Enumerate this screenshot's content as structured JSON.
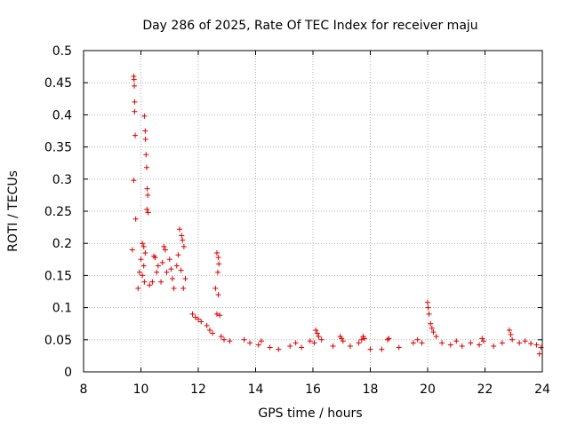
{
  "chart_data": {
    "type": "scatter",
    "title": "Day 286 of 2025, Rate Of TEC Index for receiver maju",
    "xlabel": "GPS time / hours",
    "ylabel": "ROTI / TECUs",
    "xlim": [
      8,
      24
    ],
    "ylim": [
      0,
      0.5
    ],
    "xticks": [
      8,
      10,
      12,
      14,
      16,
      18,
      20,
      22,
      24
    ],
    "yticks": [
      0,
      0.05,
      0.1,
      0.15,
      0.2,
      0.25,
      0.3,
      0.35,
      0.4,
      0.45,
      0.5
    ],
    "xtick_labels": [
      "8",
      "10",
      "12",
      "14",
      "16",
      "18",
      "20",
      "22",
      "24"
    ],
    "ytick_labels": [
      "0",
      "0.05",
      "0.1",
      "0.15",
      "0.2",
      "0.25",
      "0.3",
      "0.35",
      "0.4",
      "0.45",
      "0.5"
    ],
    "grid": true,
    "marker": "+",
    "color": "#dd0000",
    "series": [
      {
        "name": "ROTI",
        "points": [
          [
            9.75,
            0.46
          ],
          [
            9.76,
            0.455
          ],
          [
            9.77,
            0.445
          ],
          [
            9.78,
            0.42
          ],
          [
            9.78,
            0.405
          ],
          [
            9.8,
            0.368
          ],
          [
            9.75,
            0.298
          ],
          [
            9.82,
            0.238
          ],
          [
            9.7,
            0.19
          ],
          [
            10.12,
            0.398
          ],
          [
            10.15,
            0.375
          ],
          [
            10.16,
            0.362
          ],
          [
            10.18,
            0.338
          ],
          [
            10.2,
            0.318
          ],
          [
            10.22,
            0.285
          ],
          [
            10.24,
            0.275
          ],
          [
            10.21,
            0.253
          ],
          [
            10.25,
            0.248
          ],
          [
            10.05,
            0.2
          ],
          [
            10.1,
            0.195
          ],
          [
            10.15,
            0.185
          ],
          [
            10.0,
            0.175
          ],
          [
            10.1,
            0.165
          ],
          [
            9.95,
            0.155
          ],
          [
            10.05,
            0.15
          ],
          [
            10.12,
            0.14
          ],
          [
            9.9,
            0.13
          ],
          [
            10.3,
            0.135
          ],
          [
            10.45,
            0.18
          ],
          [
            10.5,
            0.178
          ],
          [
            10.6,
            0.165
          ],
          [
            10.55,
            0.155
          ],
          [
            10.4,
            0.14
          ],
          [
            10.8,
            0.195
          ],
          [
            10.85,
            0.19
          ],
          [
            10.75,
            0.17
          ],
          [
            10.9,
            0.155
          ],
          [
            10.7,
            0.14
          ],
          [
            11.0,
            0.175
          ],
          [
            11.05,
            0.16
          ],
          [
            11.1,
            0.145
          ],
          [
            11.15,
            0.13
          ],
          [
            11.35,
            0.222
          ],
          [
            11.42,
            0.212
          ],
          [
            11.45,
            0.205
          ],
          [
            11.5,
            0.195
          ],
          [
            11.3,
            0.182
          ],
          [
            11.25,
            0.165
          ],
          [
            11.4,
            0.158
          ],
          [
            11.55,
            0.145
          ],
          [
            11.48,
            0.13
          ],
          [
            12.65,
            0.185
          ],
          [
            12.7,
            0.178
          ],
          [
            12.72,
            0.168
          ],
          [
            12.68,
            0.155
          ],
          [
            12.6,
            0.13
          ],
          [
            12.7,
            0.12
          ],
          [
            12.65,
            0.09
          ],
          [
            12.75,
            0.088
          ],
          [
            11.8,
            0.09
          ],
          [
            11.9,
            0.085
          ],
          [
            12.0,
            0.082
          ],
          [
            12.1,
            0.078
          ],
          [
            12.3,
            0.072
          ],
          [
            12.4,
            0.065
          ],
          [
            12.5,
            0.06
          ],
          [
            12.8,
            0.055
          ],
          [
            12.9,
            0.05
          ],
          [
            13.1,
            0.048
          ],
          [
            13.6,
            0.05
          ],
          [
            13.8,
            0.045
          ],
          [
            14.1,
            0.042
          ],
          [
            14.2,
            0.048
          ],
          [
            14.5,
            0.038
          ],
          [
            14.8,
            0.035
          ],
          [
            15.2,
            0.04
          ],
          [
            15.4,
            0.045
          ],
          [
            15.6,
            0.038
          ],
          [
            15.9,
            0.048
          ],
          [
            16.1,
            0.065
          ],
          [
            16.15,
            0.06
          ],
          [
            16.2,
            0.055
          ],
          [
            16.3,
            0.05
          ],
          [
            16.05,
            0.045
          ],
          [
            16.7,
            0.04
          ],
          [
            16.95,
            0.055
          ],
          [
            17.0,
            0.052
          ],
          [
            17.05,
            0.048
          ],
          [
            17.3,
            0.04
          ],
          [
            17.7,
            0.05
          ],
          [
            17.75,
            0.055
          ],
          [
            17.8,
            0.052
          ],
          [
            17.6,
            0.045
          ],
          [
            18.0,
            0.035
          ],
          [
            18.4,
            0.035
          ],
          [
            18.6,
            0.05
          ],
          [
            18.65,
            0.052
          ],
          [
            19.0,
            0.038
          ],
          [
            19.5,
            0.045
          ],
          [
            19.65,
            0.05
          ],
          [
            19.8,
            0.045
          ],
          [
            20.0,
            0.108
          ],
          [
            20.02,
            0.1
          ],
          [
            20.05,
            0.09
          ],
          [
            20.1,
            0.075
          ],
          [
            20.15,
            0.068
          ],
          [
            20.2,
            0.062
          ],
          [
            20.3,
            0.055
          ],
          [
            20.5,
            0.045
          ],
          [
            20.8,
            0.042
          ],
          [
            21.0,
            0.048
          ],
          [
            21.2,
            0.04
          ],
          [
            21.5,
            0.045
          ],
          [
            21.8,
            0.042
          ],
          [
            21.9,
            0.052
          ],
          [
            21.95,
            0.048
          ],
          [
            22.3,
            0.04
          ],
          [
            22.6,
            0.045
          ],
          [
            22.85,
            0.065
          ],
          [
            22.9,
            0.058
          ],
          [
            22.95,
            0.05
          ],
          [
            23.2,
            0.045
          ],
          [
            23.4,
            0.048
          ],
          [
            23.6,
            0.044
          ],
          [
            23.8,
            0.042
          ],
          [
            23.95,
            0.038
          ],
          [
            23.9,
            0.028
          ]
        ]
      }
    ]
  }
}
